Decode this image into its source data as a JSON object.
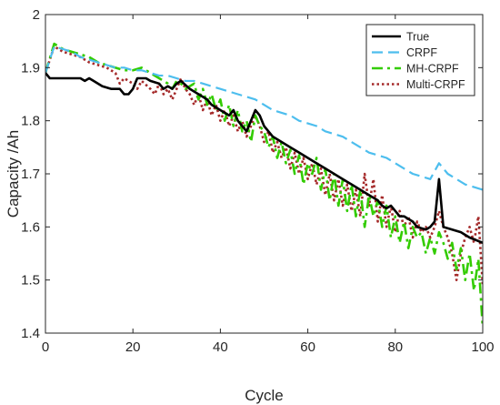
{
  "chart_data": {
    "type": "line",
    "title": "",
    "xlabel": "Cycle",
    "ylabel": "Capacity /Ah",
    "xlim": [
      0,
      100
    ],
    "ylim": [
      1.4,
      2.0
    ],
    "x_ticks": [
      0,
      20,
      40,
      60,
      80,
      100
    ],
    "y_ticks": [
      1.4,
      1.5,
      1.6,
      1.7,
      1.8,
      1.9,
      2.0
    ],
    "x_tick_labels": [
      "0",
      "20",
      "40",
      "60",
      "80",
      "100"
    ],
    "y_tick_labels": [
      "1.4",
      "1.5",
      "1.6",
      "1.7",
      "1.8",
      "1.9",
      "2"
    ],
    "grid": false,
    "legend_position": "top-right",
    "series": [
      {
        "name": "True",
        "color": "#000000",
        "style": "solid",
        "points": [
          [
            0,
            1.89
          ],
          [
            1,
            1.88
          ],
          [
            3,
            1.88
          ],
          [
            5,
            1.88
          ],
          [
            8,
            1.88
          ],
          [
            9,
            1.875
          ],
          [
            10,
            1.88
          ],
          [
            11,
            1.875
          ],
          [
            13,
            1.865
          ],
          [
            15,
            1.86
          ],
          [
            17,
            1.86
          ],
          [
            18,
            1.85
          ],
          [
            19,
            1.85
          ],
          [
            20,
            1.86
          ],
          [
            21,
            1.88
          ],
          [
            23,
            1.88
          ],
          [
            24,
            1.875
          ],
          [
            26,
            1.87
          ],
          [
            27,
            1.86
          ],
          [
            28,
            1.865
          ],
          [
            29,
            1.86
          ],
          [
            30,
            1.87
          ],
          [
            31,
            1.875
          ],
          [
            33,
            1.86
          ],
          [
            35,
            1.85
          ],
          [
            37,
            1.84
          ],
          [
            38,
            1.83
          ],
          [
            40,
            1.82
          ],
          [
            42,
            1.81
          ],
          [
            43,
            1.82
          ],
          [
            44,
            1.8
          ],
          [
            45,
            1.79
          ],
          [
            46,
            1.78
          ],
          [
            47,
            1.8
          ],
          [
            48,
            1.82
          ],
          [
            49,
            1.81
          ],
          [
            50,
            1.79
          ],
          [
            52,
            1.77
          ],
          [
            54,
            1.76
          ],
          [
            56,
            1.75
          ],
          [
            58,
            1.74
          ],
          [
            60,
            1.73
          ],
          [
            62,
            1.72
          ],
          [
            64,
            1.71
          ],
          [
            66,
            1.7
          ],
          [
            68,
            1.69
          ],
          [
            70,
            1.68
          ],
          [
            72,
            1.67
          ],
          [
            74,
            1.66
          ],
          [
            76,
            1.65
          ],
          [
            77,
            1.64
          ],
          [
            78,
            1.635
          ],
          [
            79,
            1.64
          ],
          [
            80,
            1.63
          ],
          [
            81,
            1.62
          ],
          [
            82,
            1.62
          ],
          [
            84,
            1.61
          ],
          [
            85,
            1.6
          ],
          [
            87,
            1.595
          ],
          [
            88,
            1.6
          ],
          [
            89,
            1.61
          ],
          [
            90,
            1.69
          ],
          [
            91,
            1.6
          ],
          [
            93,
            1.595
          ],
          [
            95,
            1.59
          ],
          [
            97,
            1.58
          ],
          [
            100,
            1.57
          ]
        ]
      },
      {
        "name": "CRPF",
        "color": "#4dbeee",
        "style": "dashed",
        "points": [
          [
            0,
            1.89
          ],
          [
            2,
            1.94
          ],
          [
            4,
            1.935
          ],
          [
            6,
            1.93
          ],
          [
            8,
            1.92
          ],
          [
            10,
            1.915
          ],
          [
            12,
            1.91
          ],
          [
            14,
            1.905
          ],
          [
            16,
            1.9
          ],
          [
            18,
            1.9
          ],
          [
            20,
            1.895
          ],
          [
            22,
            1.895
          ],
          [
            24,
            1.89
          ],
          [
            26,
            1.885
          ],
          [
            28,
            1.885
          ],
          [
            30,
            1.88
          ],
          [
            32,
            1.875
          ],
          [
            34,
            1.875
          ],
          [
            36,
            1.87
          ],
          [
            38,
            1.865
          ],
          [
            40,
            1.86
          ],
          [
            42,
            1.855
          ],
          [
            44,
            1.85
          ],
          [
            46,
            1.845
          ],
          [
            48,
            1.84
          ],
          [
            50,
            1.83
          ],
          [
            52,
            1.82
          ],
          [
            54,
            1.815
          ],
          [
            56,
            1.81
          ],
          [
            58,
            1.8
          ],
          [
            60,
            1.795
          ],
          [
            62,
            1.79
          ],
          [
            64,
            1.78
          ],
          [
            66,
            1.775
          ],
          [
            68,
            1.77
          ],
          [
            70,
            1.76
          ],
          [
            72,
            1.75
          ],
          [
            74,
            1.74
          ],
          [
            76,
            1.735
          ],
          [
            78,
            1.73
          ],
          [
            80,
            1.72
          ],
          [
            82,
            1.71
          ],
          [
            84,
            1.7
          ],
          [
            86,
            1.695
          ],
          [
            88,
            1.69
          ],
          [
            90,
            1.72
          ],
          [
            91,
            1.71
          ],
          [
            92,
            1.7
          ],
          [
            94,
            1.69
          ],
          [
            96,
            1.68
          ],
          [
            98,
            1.675
          ],
          [
            100,
            1.67
          ]
        ]
      },
      {
        "name": "MH-CRPF",
        "color": "#33cc00",
        "style": "dash-dot",
        "points": [
          [
            0,
            1.89
          ],
          [
            2,
            1.945
          ],
          [
            4,
            1.935
          ],
          [
            6,
            1.93
          ],
          [
            8,
            1.925
          ],
          [
            10,
            1.92
          ],
          [
            12,
            1.91
          ],
          [
            14,
            1.905
          ],
          [
            16,
            1.9
          ],
          [
            18,
            1.895
          ],
          [
            20,
            1.895
          ],
          [
            22,
            1.9
          ],
          [
            24,
            1.89
          ],
          [
            26,
            1.88
          ],
          [
            28,
            1.87
          ],
          [
            29,
            1.86
          ],
          [
            30,
            1.875
          ],
          [
            31,
            1.87
          ],
          [
            32,
            1.86
          ],
          [
            34,
            1.87
          ],
          [
            35,
            1.84
          ],
          [
            36,
            1.86
          ],
          [
            37,
            1.83
          ],
          [
            38,
            1.85
          ],
          [
            39,
            1.82
          ],
          [
            40,
            1.84
          ],
          [
            41,
            1.8
          ],
          [
            42,
            1.83
          ],
          [
            43,
            1.79
          ],
          [
            44,
            1.82
          ],
          [
            45,
            1.78
          ],
          [
            46,
            1.8
          ],
          [
            47,
            1.76
          ],
          [
            48,
            1.81
          ],
          [
            49,
            1.79
          ],
          [
            50,
            1.78
          ],
          [
            51,
            1.75
          ],
          [
            52,
            1.77
          ],
          [
            53,
            1.73
          ],
          [
            54,
            1.76
          ],
          [
            55,
            1.72
          ],
          [
            56,
            1.745
          ],
          [
            57,
            1.7
          ],
          [
            58,
            1.735
          ],
          [
            59,
            1.68
          ],
          [
            60,
            1.72
          ],
          [
            61,
            1.7
          ],
          [
            62,
            1.73
          ],
          [
            63,
            1.67
          ],
          [
            64,
            1.71
          ],
          [
            65,
            1.65
          ],
          [
            66,
            1.7
          ],
          [
            67,
            1.64
          ],
          [
            68,
            1.69
          ],
          [
            69,
            1.63
          ],
          [
            70,
            1.68
          ],
          [
            71,
            1.62
          ],
          [
            72,
            1.67
          ],
          [
            73,
            1.6
          ],
          [
            74,
            1.66
          ],
          [
            75,
            1.62
          ],
          [
            76,
            1.65
          ],
          [
            77,
            1.6
          ],
          [
            78,
            1.64
          ],
          [
            79,
            1.58
          ],
          [
            80,
            1.62
          ],
          [
            81,
            1.57
          ],
          [
            82,
            1.61
          ],
          [
            83,
            1.56
          ],
          [
            84,
            1.6
          ],
          [
            85,
            1.58
          ],
          [
            86,
            1.59
          ],
          [
            87,
            1.55
          ],
          [
            88,
            1.58
          ],
          [
            89,
            1.55
          ],
          [
            90,
            1.59
          ],
          [
            91,
            1.57
          ],
          [
            92,
            1.54
          ],
          [
            93,
            1.57
          ],
          [
            94,
            1.52
          ],
          [
            95,
            1.56
          ],
          [
            96,
            1.5
          ],
          [
            97,
            1.55
          ],
          [
            98,
            1.48
          ],
          [
            99,
            1.54
          ],
          [
            100,
            1.41
          ]
        ]
      },
      {
        "name": "Multi-CRPF",
        "color": "#a52a2a",
        "style": "dotted",
        "points": [
          [
            0,
            1.89
          ],
          [
            2,
            1.94
          ],
          [
            4,
            1.93
          ],
          [
            6,
            1.925
          ],
          [
            8,
            1.92
          ],
          [
            10,
            1.91
          ],
          [
            12,
            1.905
          ],
          [
            14,
            1.9
          ],
          [
            16,
            1.89
          ],
          [
            17,
            1.87
          ],
          [
            18,
            1.88
          ],
          [
            20,
            1.87
          ],
          [
            21,
            1.86
          ],
          [
            22,
            1.875
          ],
          [
            24,
            1.86
          ],
          [
            25,
            1.85
          ],
          [
            26,
            1.87
          ],
          [
            27,
            1.85
          ],
          [
            28,
            1.86
          ],
          [
            29,
            1.84
          ],
          [
            30,
            1.86
          ],
          [
            31,
            1.88
          ],
          [
            32,
            1.86
          ],
          [
            33,
            1.85
          ],
          [
            34,
            1.83
          ],
          [
            35,
            1.85
          ],
          [
            36,
            1.82
          ],
          [
            37,
            1.84
          ],
          [
            38,
            1.81
          ],
          [
            39,
            1.83
          ],
          [
            40,
            1.8
          ],
          [
            41,
            1.82
          ],
          [
            42,
            1.79
          ],
          [
            43,
            1.81
          ],
          [
            44,
            1.78
          ],
          [
            45,
            1.8
          ],
          [
            46,
            1.77
          ],
          [
            47,
            1.79
          ],
          [
            48,
            1.81
          ],
          [
            49,
            1.79
          ],
          [
            50,
            1.76
          ],
          [
            51,
            1.78
          ],
          [
            52,
            1.74
          ],
          [
            53,
            1.76
          ],
          [
            54,
            1.73
          ],
          [
            55,
            1.75
          ],
          [
            56,
            1.71
          ],
          [
            57,
            1.74
          ],
          [
            58,
            1.7
          ],
          [
            59,
            1.73
          ],
          [
            60,
            1.69
          ],
          [
            61,
            1.72
          ],
          [
            62,
            1.68
          ],
          [
            63,
            1.71
          ],
          [
            64,
            1.66
          ],
          [
            65,
            1.7
          ],
          [
            66,
            1.65
          ],
          [
            67,
            1.69
          ],
          [
            68,
            1.64
          ],
          [
            69,
            1.68
          ],
          [
            70,
            1.63
          ],
          [
            71,
            1.67
          ],
          [
            72,
            1.62
          ],
          [
            73,
            1.7
          ],
          [
            74,
            1.64
          ],
          [
            75,
            1.69
          ],
          [
            76,
            1.61
          ],
          [
            77,
            1.66
          ],
          [
            78,
            1.6
          ],
          [
            79,
            1.64
          ],
          [
            80,
            1.59
          ],
          [
            81,
            1.63
          ],
          [
            82,
            1.6
          ],
          [
            83,
            1.62
          ],
          [
            84,
            1.58
          ],
          [
            85,
            1.61
          ],
          [
            86,
            1.59
          ],
          [
            87,
            1.6
          ],
          [
            88,
            1.58
          ],
          [
            89,
            1.6
          ],
          [
            90,
            1.63
          ],
          [
            91,
            1.6
          ],
          [
            92,
            1.58
          ],
          [
            93,
            1.55
          ],
          [
            94,
            1.5
          ],
          [
            95,
            1.55
          ],
          [
            96,
            1.58
          ],
          [
            97,
            1.6
          ],
          [
            98,
            1.57
          ],
          [
            99,
            1.62
          ],
          [
            100,
            1.49
          ]
        ]
      }
    ]
  }
}
